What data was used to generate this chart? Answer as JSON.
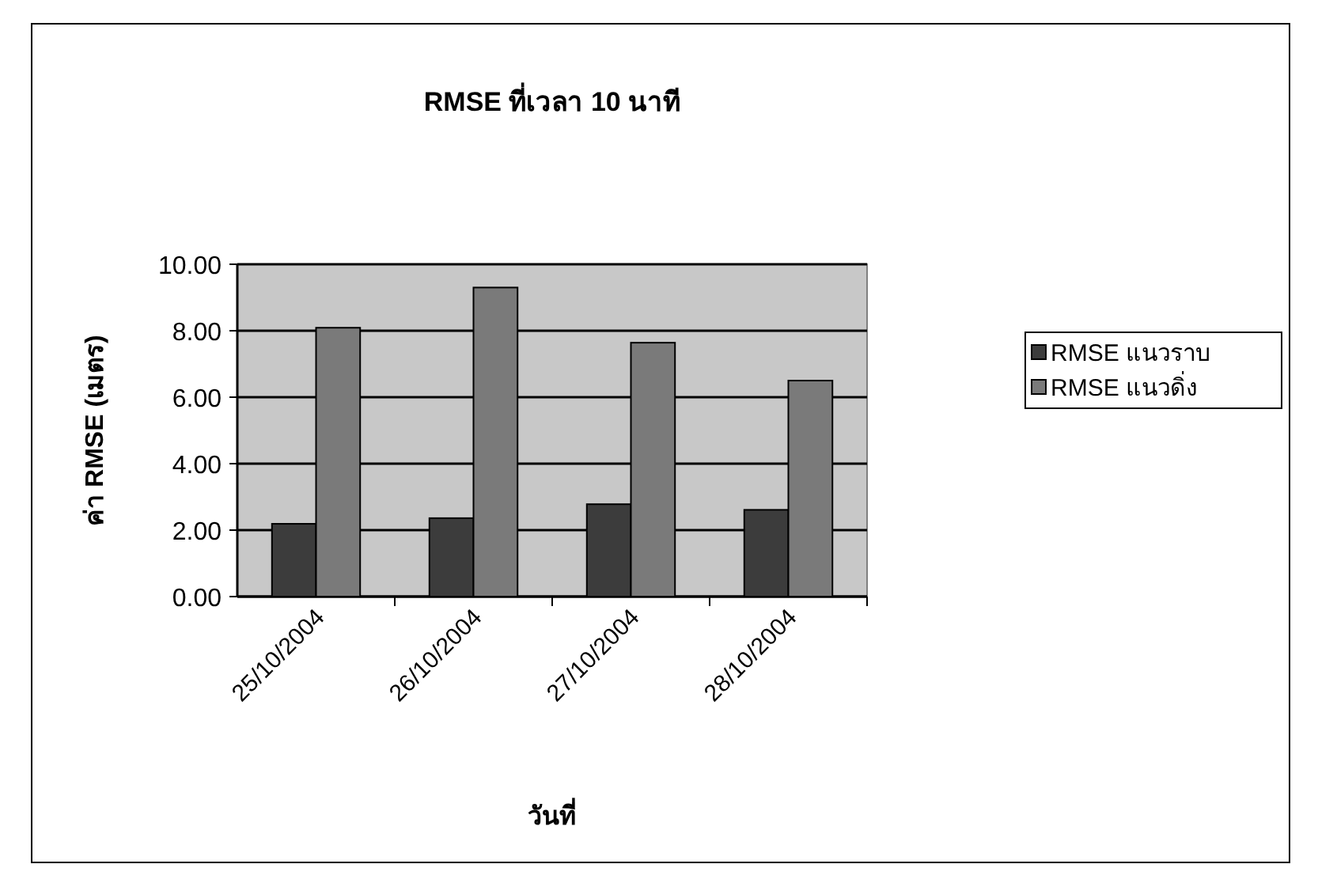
{
  "chart_data": {
    "type": "bar",
    "title": "RMSE ที่เวลา 10 นาที",
    "xlabel": "วันที่",
    "ylabel": "ค่า RMSE (เมตร)",
    "categories": [
      "25/10/2004",
      "26/10/2004",
      "27/10/2004",
      "28/10/2004"
    ],
    "series": [
      {
        "name": "RMSE แนวราบ",
        "color": "#3c3c3c",
        "values": [
          2.19,
          2.36,
          2.78,
          2.61
        ]
      },
      {
        "name": "RMSE แนวดิ่ง",
        "color": "#7a7a7a",
        "values": [
          8.09,
          9.3,
          7.64,
          6.5
        ]
      }
    ],
    "ylim": [
      0,
      10
    ],
    "yticks": [
      {
        "value": 0,
        "label": "0.00"
      },
      {
        "value": 2,
        "label": "2.00"
      },
      {
        "value": 4,
        "label": "4.00"
      },
      {
        "value": 6,
        "label": "6.00"
      },
      {
        "value": 8,
        "label": "8.00"
      },
      {
        "value": 10,
        "label": "10.00"
      }
    ],
    "grid": "y",
    "legend": "right"
  }
}
